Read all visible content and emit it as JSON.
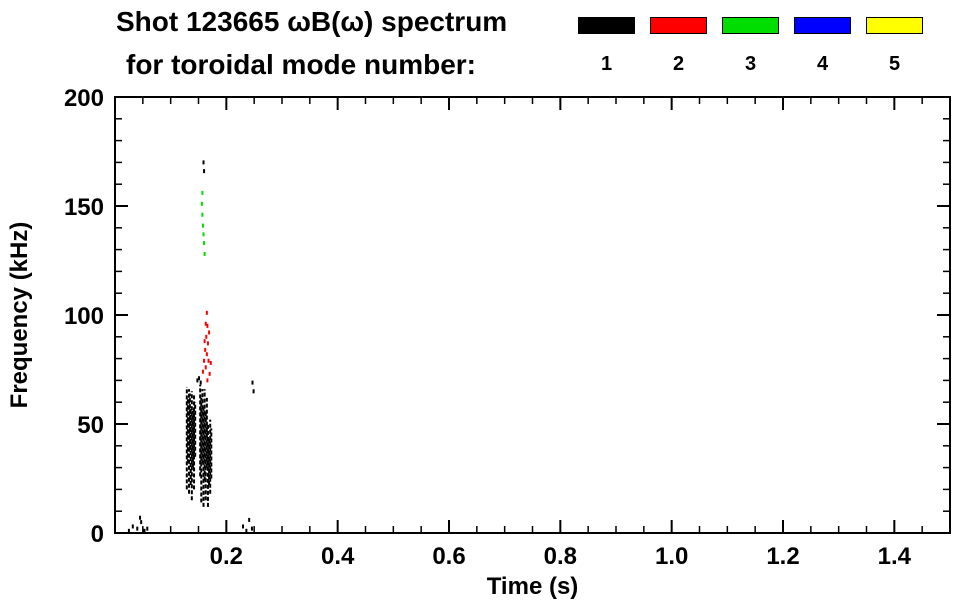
{
  "header": {
    "title_line1": "Shot 123665 ωB(ω) spectrum",
    "title_line2": "for toroidal mode number:"
  },
  "chart_data": {
    "type": "scatter",
    "title": "Shot 123665 ωB(ω) spectrum for toroidal mode number:",
    "xlabel": "Time (s)",
    "ylabel": "Frequency (kHz)",
    "xlim": [
      0,
      1.5
    ],
    "ylim": [
      0,
      200
    ],
    "grid": false,
    "legend_position": "top-right",
    "x_major_ticks": [
      0.2,
      0.4,
      0.6,
      0.8,
      1.0,
      1.2,
      1.4
    ],
    "x_tick_labels": [
      "0.2",
      "0.4",
      "0.6",
      "0.8",
      "1.0",
      "1.2",
      "1.4"
    ],
    "x_minor_step": 0.05,
    "y_major_ticks": [
      0,
      50,
      100,
      150,
      200
    ],
    "y_tick_labels": [
      "0",
      "50",
      "100",
      "150",
      "200"
    ],
    "y_minor_step": 10,
    "legend": [
      {
        "label": "1",
        "color": "#000000"
      },
      {
        "label": "2",
        "color": "#ff0000"
      },
      {
        "label": "3",
        "color": "#00dd00"
      },
      {
        "label": "4",
        "color": "#0000ff"
      },
      {
        "label": "5",
        "color": "#ffff00"
      }
    ],
    "series": [
      {
        "name": "mode-1",
        "color": "#000000",
        "segments": [
          [
            0.129,
            20,
            67
          ],
          [
            0.131,
            32,
            62
          ],
          [
            0.133,
            18,
            66
          ],
          [
            0.1345,
            38,
            64
          ],
          [
            0.136,
            22,
            58
          ],
          [
            0.138,
            15,
            65
          ],
          [
            0.14,
            30,
            56
          ],
          [
            0.142,
            20,
            64
          ],
          [
            0.144,
            35,
            60
          ],
          [
            0.153,
            26,
            68
          ],
          [
            0.155,
            14,
            62
          ],
          [
            0.157,
            32,
            66
          ],
          [
            0.159,
            12,
            58
          ],
          [
            0.161,
            24,
            66
          ],
          [
            0.163,
            15,
            56
          ],
          [
            0.165,
            30,
            62
          ],
          [
            0.167,
            12,
            50
          ],
          [
            0.169,
            22,
            44
          ],
          [
            0.171,
            18,
            52
          ],
          [
            0.173,
            25,
            48
          ]
        ],
        "points": [
          [
            0.025,
            1
          ],
          [
            0.032,
            3
          ],
          [
            0.04,
            2
          ],
          [
            0.045,
            7
          ],
          [
            0.047,
            5
          ],
          [
            0.053,
            1
          ],
          [
            0.058,
            2
          ],
          [
            0.148,
            70
          ],
          [
            0.151,
            71
          ],
          [
            0.154,
            69
          ],
          [
            0.159,
            170
          ],
          [
            0.16,
            166
          ],
          [
            0.23,
            3
          ],
          [
            0.236,
            1
          ],
          [
            0.241,
            6
          ],
          [
            0.246,
            2
          ],
          [
            0.247,
            69
          ],
          [
            0.249,
            65
          ]
        ]
      },
      {
        "name": "mode-2",
        "color": "#ff0000",
        "segments": [],
        "points": [
          [
            0.158,
            74
          ],
          [
            0.16,
            79
          ],
          [
            0.162,
            84
          ],
          [
            0.163,
            76
          ],
          [
            0.164,
            90
          ],
          [
            0.165,
            82
          ],
          [
            0.166,
            95
          ],
          [
            0.167,
            87
          ],
          [
            0.168,
            79
          ],
          [
            0.169,
            92
          ],
          [
            0.17,
            73
          ],
          [
            0.165,
            101
          ],
          [
            0.166,
            70
          ],
          [
            0.163,
            96
          ],
          [
            0.161,
            88
          ],
          [
            0.172,
            78
          ]
        ]
      },
      {
        "name": "mode-3",
        "color": "#00dd00",
        "segments": [],
        "points": [
          [
            0.156,
            151
          ],
          [
            0.157,
            146
          ],
          [
            0.158,
            141
          ],
          [
            0.159,
            137
          ],
          [
            0.16,
            133
          ],
          [
            0.157,
            156
          ],
          [
            0.161,
            128
          ]
        ]
      },
      {
        "name": "mode-4",
        "color": "#0000ff",
        "segments": [],
        "points": []
      },
      {
        "name": "mode-5",
        "color": "#ffff00",
        "segments": [],
        "points": []
      }
    ]
  }
}
